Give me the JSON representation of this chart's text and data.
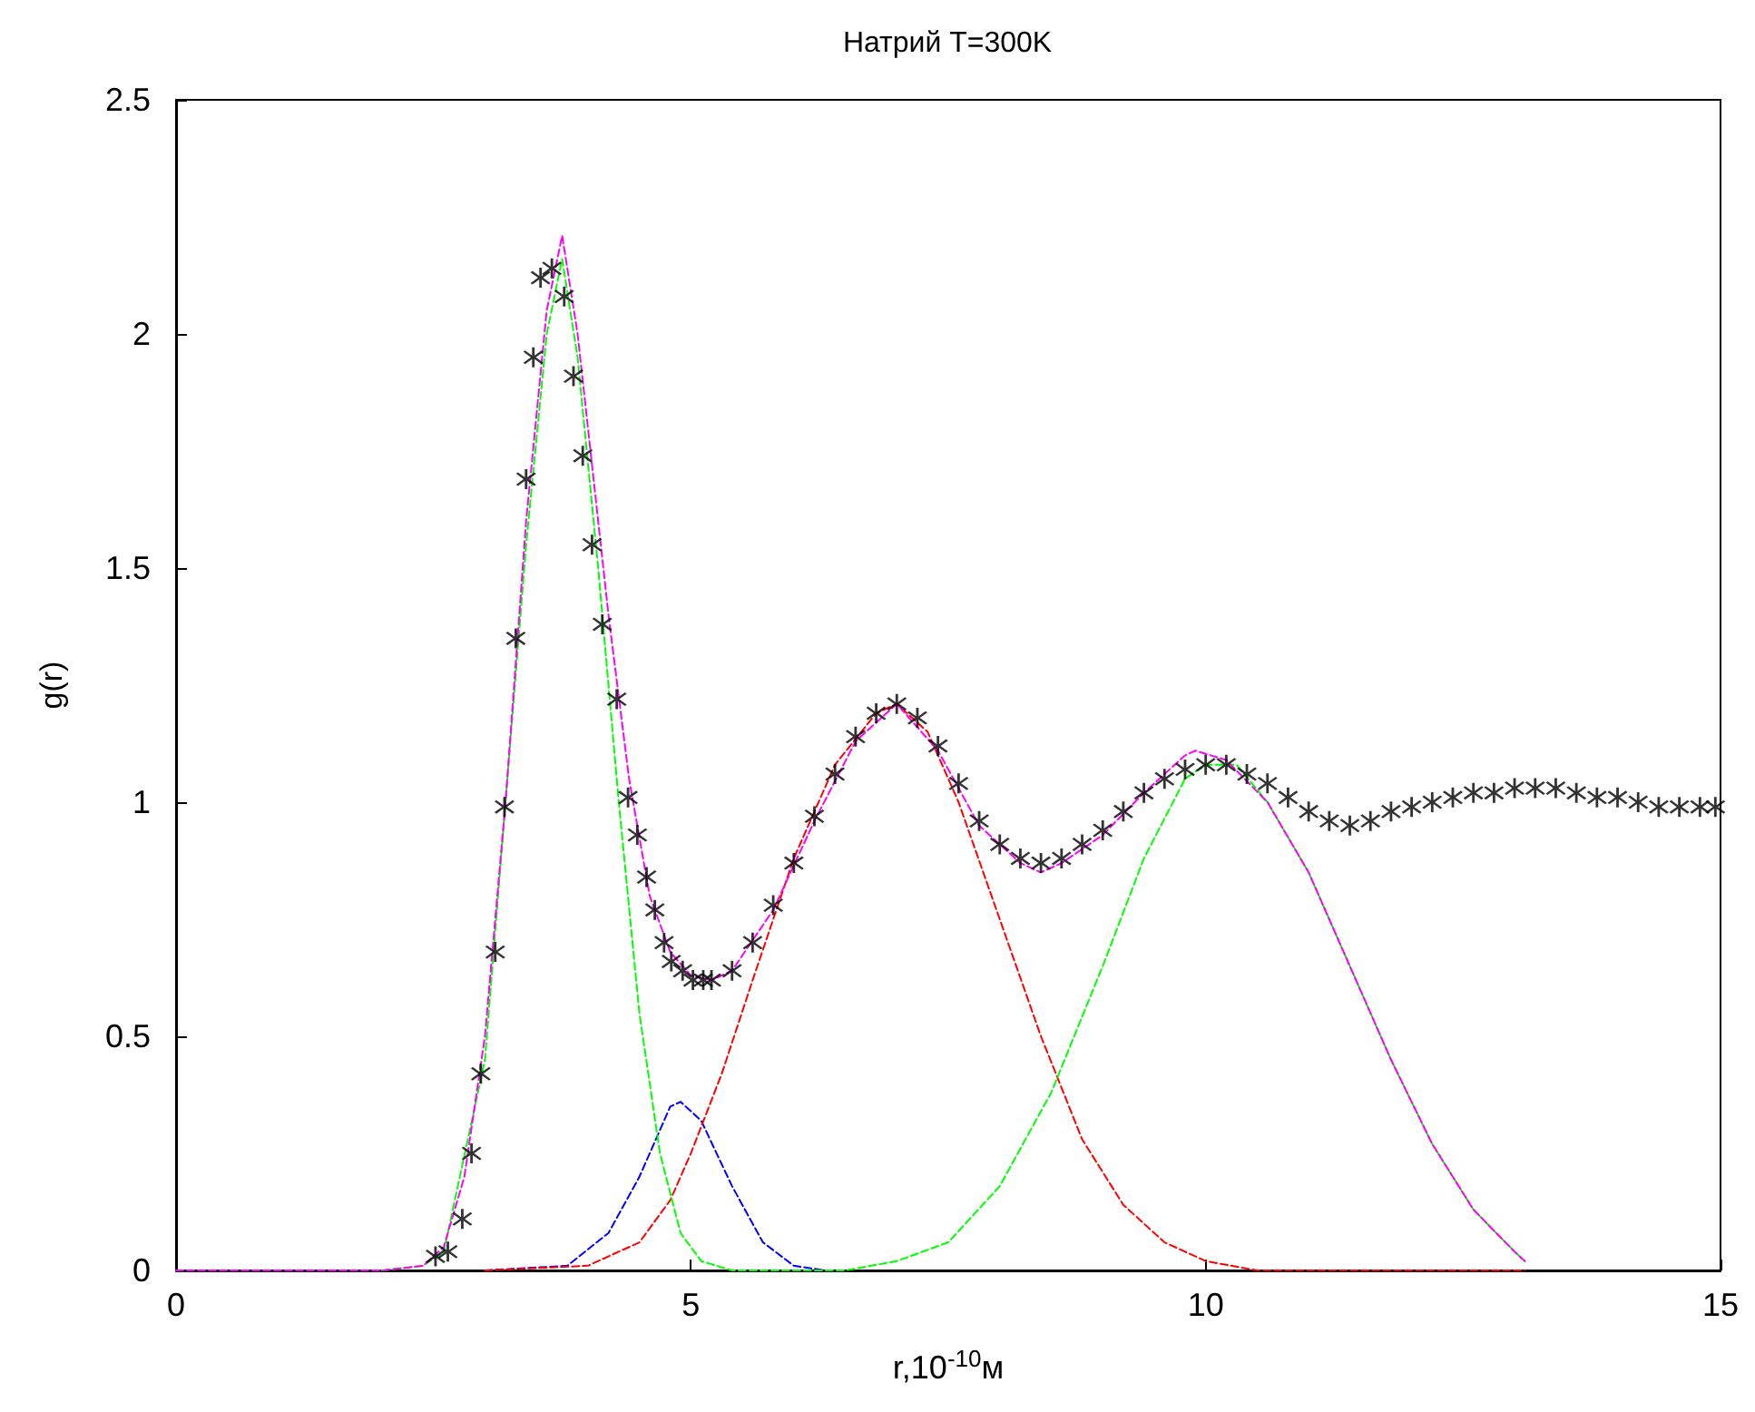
{
  "chart_data": {
    "type": "line",
    "title": "Натрий T=300K",
    "xlabel": "r,10$^{-10}$м",
    "ylabel": "g(r)",
    "xlim": [
      0,
      15
    ],
    "xticks": [
      0,
      5,
      10,
      15
    ],
    "ylim": [
      0,
      2.5
    ],
    "yticks": [
      0,
      0.5,
      1,
      1.5,
      2,
      2.5
    ],
    "series": [
      {
        "color": "#0000ff",
        "line_style": "dashed",
        "x": [
          3,
          3.8,
          4.2,
          4.5,
          4.8,
          4.9,
          5.1,
          5.4,
          5.7,
          6.0,
          6.3
        ],
        "values": [
          0,
          0.01,
          0.08,
          0.2,
          0.35,
          0.36,
          0.32,
          0.18,
          0.06,
          0.01,
          0
        ]
      },
      {
        "color": "#ff0000",
        "line_style": "dashed",
        "x": [
          3,
          4.0,
          4.5,
          4.8,
          5.0,
          5.3,
          5.6,
          6.0,
          6.4,
          6.8,
          7.0,
          7.3,
          7.6,
          8.0,
          8.4,
          8.8,
          9.2,
          9.6,
          10.0,
          10.5,
          11,
          12,
          13.1
        ],
        "values": [
          0,
          0.01,
          0.06,
          0.15,
          0.25,
          0.42,
          0.62,
          0.88,
          1.08,
          1.19,
          1.21,
          1.15,
          1.0,
          0.75,
          0.5,
          0.28,
          0.14,
          0.06,
          0.02,
          0,
          0,
          0,
          0
        ]
      },
      {
        "color": "#00ff00",
        "line_style": "dashed",
        "x": [
          2,
          2.4,
          2.6,
          3.0,
          3.4,
          3.6,
          3.75,
          3.9,
          4.1,
          4.3,
          4.5,
          4.7,
          4.9,
          5.1,
          5.4,
          6.0,
          6.5,
          7.0,
          7.5,
          8.0,
          8.5,
          9.0,
          9.4,
          9.8,
          10.0,
          10.3,
          10.6,
          11.0,
          11.4,
          11.8,
          12.2,
          12.6,
          13.0,
          13.1
        ],
        "values": [
          0,
          0.01,
          0.04,
          0.45,
          1.55,
          2.0,
          2.16,
          1.95,
          1.5,
          1.0,
          0.55,
          0.25,
          0.08,
          0.02,
          0,
          0,
          0,
          0.02,
          0.06,
          0.18,
          0.38,
          0.65,
          0.88,
          1.05,
          1.08,
          1.08,
          1.0,
          0.85,
          0.65,
          0.45,
          0.27,
          0.13,
          0.04,
          0.02
        ]
      },
      {
        "color": "#ff00ff",
        "line_style": "dashed",
        "x": [
          0,
          1,
          2,
          2.4,
          2.6,
          2.8,
          3.0,
          3.2,
          3.4,
          3.6,
          3.75,
          3.9,
          4.0,
          4.2,
          4.4,
          4.6,
          4.8,
          5.0,
          5.2,
          5.4,
          5.8,
          6.2,
          6.6,
          7.0,
          7.4,
          7.8,
          8.2,
          8.4,
          8.6,
          9.0,
          9.4,
          9.8,
          9.9,
          10.2,
          10.6,
          11.0,
          11.4,
          11.8,
          12.2,
          12.6,
          13.0,
          13.1
        ],
        "values": [
          0,
          0,
          0,
          0.01,
          0.05,
          0.2,
          0.5,
          1.0,
          1.6,
          2.05,
          2.21,
          2.0,
          1.8,
          1.4,
          1.05,
          0.8,
          0.68,
          0.63,
          0.62,
          0.64,
          0.77,
          0.96,
          1.13,
          1.21,
          1.11,
          0.95,
          0.87,
          0.85,
          0.87,
          0.93,
          1.02,
          1.1,
          1.11,
          1.09,
          1.0,
          0.85,
          0.65,
          0.45,
          0.27,
          0.13,
          0.04,
          0.02
        ]
      },
      {
        "type": "scatter",
        "color": "#000000",
        "marker": "star",
        "x": [
          2.52,
          2.64,
          2.78,
          2.87,
          2.96,
          3.1,
          3.19,
          3.3,
          3.4,
          3.47,
          3.54,
          3.65,
          3.77,
          3.86,
          3.95,
          4.04,
          4.14,
          4.28,
          4.39,
          4.48,
          4.57,
          4.65,
          4.74,
          4.81,
          4.92,
          5.02,
          5.12,
          5.2,
          5.4,
          5.6,
          5.8,
          6.0,
          6.2,
          6.4,
          6.6,
          6.8,
          7.0,
          7.2,
          7.4,
          7.6,
          7.8,
          8.0,
          8.2,
          8.4,
          8.6,
          8.8,
          9.0,
          9.2,
          9.4,
          9.6,
          9.8,
          10.0,
          10.2,
          10.4,
          10.6,
          10.8,
          11.0,
          11.2,
          11.4,
          11.6,
          11.8,
          12.0,
          12.2,
          12.4,
          12.6,
          12.8,
          13.0,
          13.2,
          13.4,
          13.6,
          13.8,
          14.0,
          14.2,
          14.4,
          14.6,
          14.8,
          14.95
        ],
        "values": [
          0.03,
          0.04,
          0.11,
          0.25,
          0.42,
          0.68,
          0.99,
          1.35,
          1.69,
          1.95,
          2.12,
          2.14,
          2.08,
          1.91,
          1.74,
          1.55,
          1.38,
          1.22,
          1.01,
          0.93,
          0.84,
          0.77,
          0.7,
          0.66,
          0.64,
          0.62,
          0.62,
          0.62,
          0.64,
          0.7,
          0.78,
          0.87,
          0.97,
          1.06,
          1.14,
          1.19,
          1.21,
          1.18,
          1.12,
          1.04,
          0.96,
          0.91,
          0.88,
          0.87,
          0.88,
          0.91,
          0.94,
          0.98,
          1.02,
          1.05,
          1.07,
          1.08,
          1.08,
          1.06,
          1.04,
          1.01,
          0.98,
          0.96,
          0.95,
          0.96,
          0.98,
          0.99,
          1.0,
          1.01,
          1.02,
          1.02,
          1.03,
          1.03,
          1.03,
          1.02,
          1.01,
          1.01,
          1.0,
          0.99,
          0.99,
          0.99,
          0.99
        ]
      }
    ]
  }
}
